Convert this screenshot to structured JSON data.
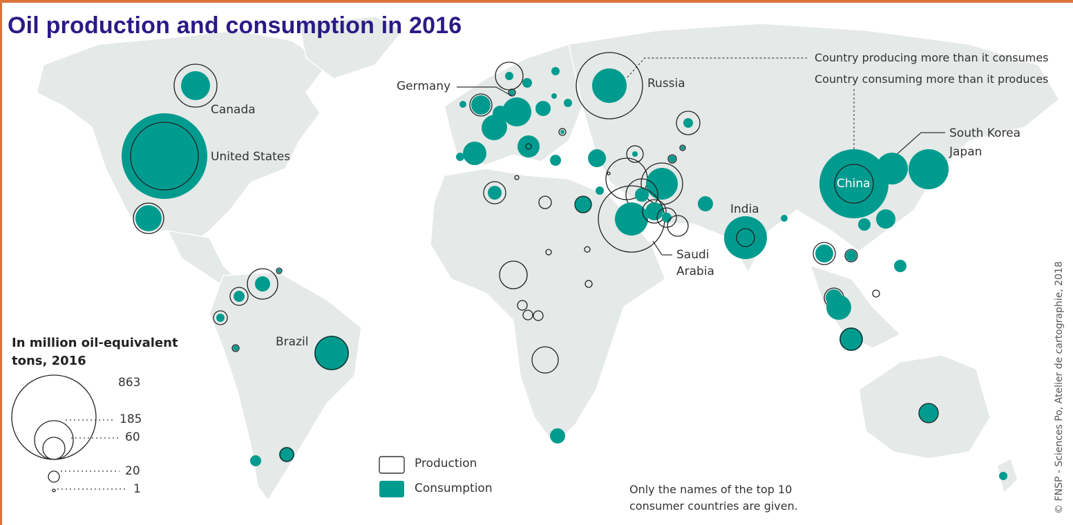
{
  "title": "Oil production and consumption in 2016",
  "map_labels": {
    "canada": "Canada",
    "united_states": "United States",
    "brazil": "Brazil",
    "germany": "Germany",
    "russia": "Russia",
    "saudi_arabia_line1": "Saudi",
    "saudi_arabia_line2": "Arabia",
    "india": "India",
    "china": "China",
    "south_korea": "South Korea",
    "japan": "Japan"
  },
  "key": {
    "producer": "Country producing more than it consumes",
    "consumer": "Country consuming more than it produces"
  },
  "size_legend": {
    "title_line1": "In million oil-equivalent",
    "title_line2": "tons, 2016",
    "values": [
      "863",
      "185",
      "60",
      "20",
      "1"
    ]
  },
  "type_legend": {
    "production": "Production",
    "consumption": "Consumption"
  },
  "note_line1": "Only the names of the top 10",
  "note_line2": "consumer countries are given.",
  "credit": "© FNSP - Sciences Po, Atelier de cartographie, 2018",
  "colors": {
    "consumption": "#009b8f",
    "land": "#e6eae8",
    "title": "#2a1a86",
    "frame": "#d9733a"
  }
}
